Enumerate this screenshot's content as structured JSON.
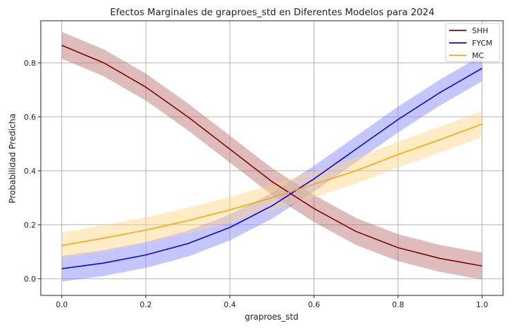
{
  "chart_data": {
    "type": "line",
    "title": "Efectos Marginales de graproes_std en Diferentes Modelos para 2024",
    "xlabel": "graproes_std",
    "ylabel": "Probabilidad Predicha",
    "xlim": [
      -0.05,
      1.05
    ],
    "ylim": [
      -0.062,
      0.956
    ],
    "xticks": [
      "0.0",
      "0.2",
      "0.4",
      "0.6",
      "0.8",
      "1.0"
    ],
    "xtick_values": [
      0,
      0.2,
      0.4,
      0.6,
      0.8,
      1.0
    ],
    "yticks": [
      "0.0",
      "0.2",
      "0.4",
      "0.6",
      "0.8"
    ],
    "ytick_values": [
      0,
      0.2,
      0.4,
      0.6,
      0.8
    ],
    "grid": true,
    "legend_position": "top-right",
    "x": [
      0,
      0.1,
      0.2,
      0.3,
      0.4,
      0.5,
      0.6,
      0.7,
      0.8,
      0.9,
      1.0
    ],
    "series": [
      {
        "name": "SHH",
        "color": "#800000",
        "band_color": "#b86a6a",
        "values": [
          0.865,
          0.8,
          0.71,
          0.6,
          0.48,
          0.36,
          0.26,
          0.175,
          0.115,
          0.075,
          0.047
        ],
        "ci_halfwidth": 0.05
      },
      {
        "name": "FYCM",
        "color": "#0000ff",
        "band_color": "#8080ff",
        "values": [
          0.037,
          0.058,
          0.088,
          0.13,
          0.19,
          0.27,
          0.37,
          0.48,
          0.59,
          0.69,
          0.78
        ],
        "ci_halfwidth": 0.048
      },
      {
        "name": "MC",
        "color": "#ffa500",
        "band_color": "#ffd27f",
        "values": [
          0.123,
          0.15,
          0.18,
          0.215,
          0.255,
          0.3,
          0.35,
          0.4,
          0.46,
          0.515,
          0.573
        ],
        "ci_halfwidth": 0.048
      }
    ]
  }
}
